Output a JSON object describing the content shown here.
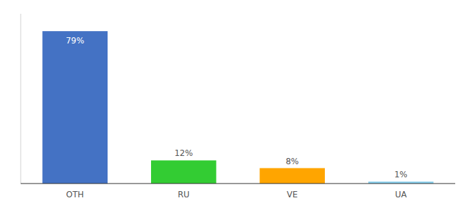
{
  "chart_data": {
    "type": "bar",
    "categories": [
      "OTH",
      "RU",
      "VE",
      "UA"
    ],
    "values": [
      79,
      12,
      8,
      1
    ],
    "value_labels": [
      "79%",
      "12%",
      "8%",
      "1%"
    ],
    "colors": [
      "#4472C4",
      "#33CC33",
      "#FFA500",
      "#87CEEB"
    ],
    "ylim": [
      0,
      88
    ],
    "data_labels": true,
    "tick_labels": "x",
    "grid": false
  }
}
